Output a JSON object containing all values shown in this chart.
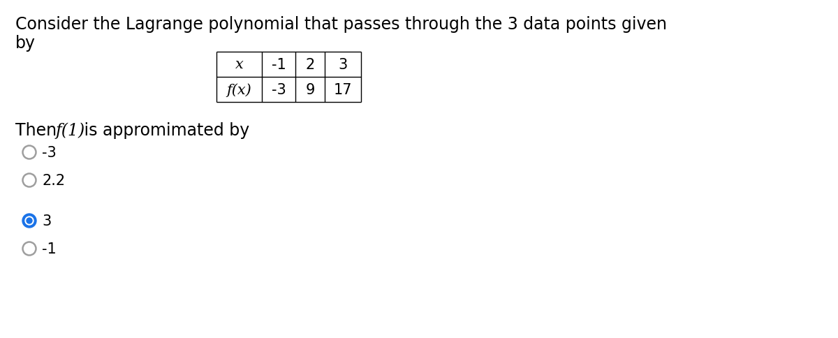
{
  "title_line1": "Consider the Lagrange polynomial that passes through the 3 data points given",
  "title_line2": "by",
  "table_x_label": "x",
  "table_fx_label": "f(x)",
  "table_x_values": [
    "-1",
    "2",
    "3"
  ],
  "table_fx_values": [
    "-3",
    "9",
    "17"
  ],
  "question_pre": "Then ",
  "question_italic": "f(1)",
  "question_post": " is appromimated by",
  "options": [
    "-3",
    "2.2",
    "3",
    "-1"
  ],
  "selected_index": 2,
  "background_color": "#ffffff",
  "text_color": "#000000",
  "selected_fill": "#1a73e8",
  "unselected_edge": "#9e9e9e",
  "font_size_title": 17,
  "font_size_table": 15,
  "font_size_question": 17,
  "font_size_options": 15
}
